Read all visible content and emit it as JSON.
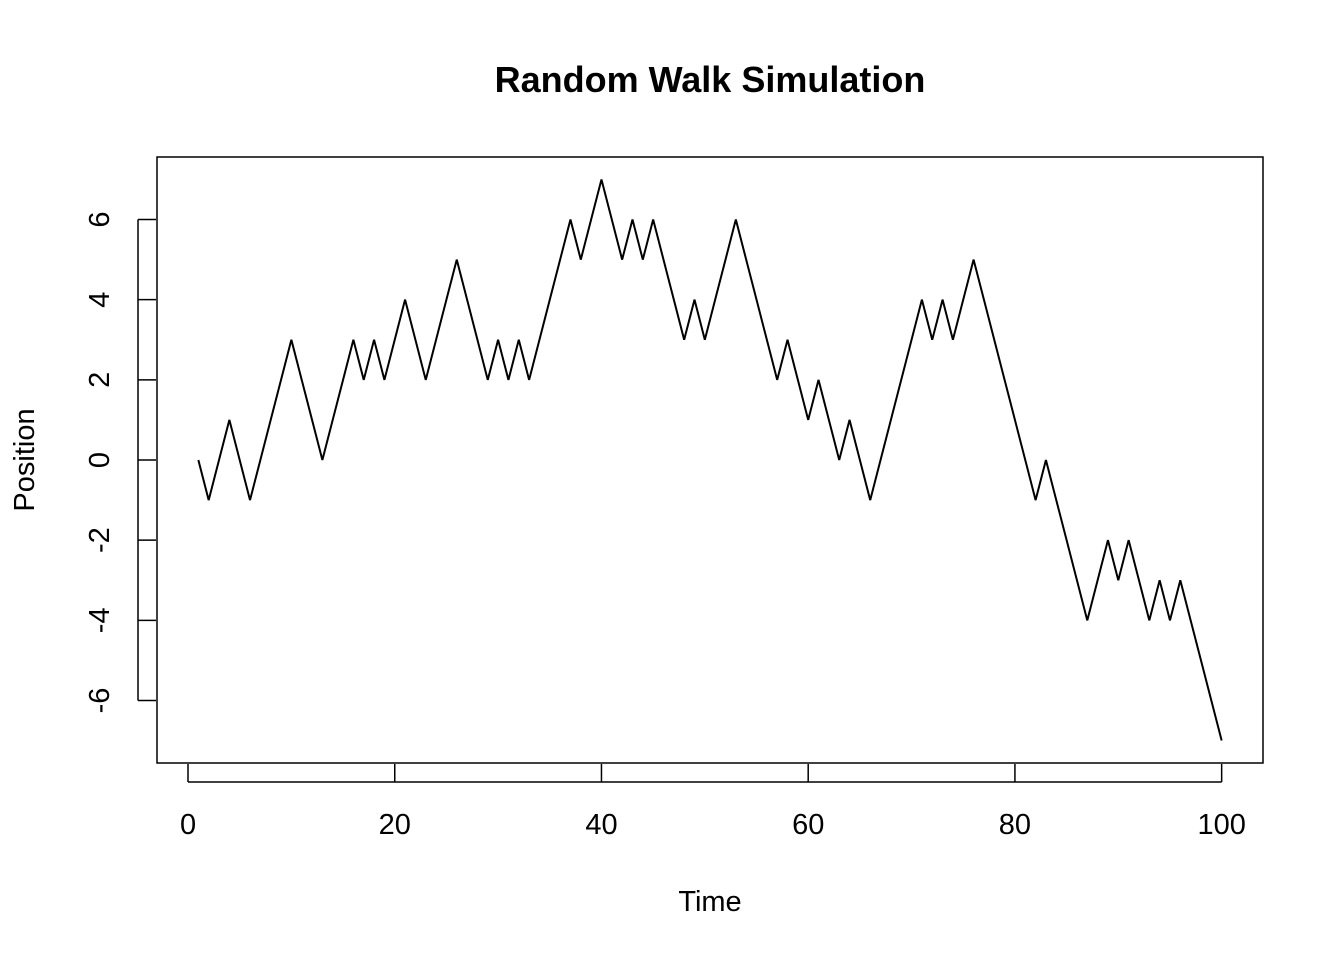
{
  "chart_data": {
    "type": "line",
    "title": "Random Walk Simulation",
    "xlabel": "Time",
    "ylabel": "Position",
    "xlim": [
      -3.0,
      104.0
    ],
    "ylim": [
      -7.56,
      7.56
    ],
    "xticks": [
      0,
      20,
      40,
      60,
      80,
      100
    ],
    "xtick_labels": [
      "0",
      "20",
      "40",
      "60",
      "80",
      "100"
    ],
    "yticks": [
      -6,
      -4,
      -2,
      0,
      2,
      4,
      6
    ],
    "ytick_labels": [
      "-6",
      "-4",
      "-2",
      "0",
      "2",
      "4",
      "6"
    ],
    "grid": false,
    "legend": "none",
    "colors": {
      "line": "#000000",
      "frame": "#000000",
      "background": "#ffffff"
    },
    "series": [
      {
        "x": [
          1,
          2,
          3,
          4,
          5,
          6,
          7,
          8,
          9,
          10,
          11,
          12,
          13,
          14,
          15,
          16,
          17,
          18,
          19,
          20,
          21,
          22,
          23,
          24,
          25,
          26,
          27,
          28,
          29,
          30,
          31,
          32,
          33,
          34,
          35,
          36,
          37,
          38,
          39,
          40,
          41,
          42,
          43,
          44,
          45,
          46,
          47,
          48,
          49,
          50,
          51,
          52,
          53,
          54,
          55,
          56,
          57,
          58,
          59,
          60,
          61,
          62,
          63,
          64,
          65,
          66,
          67,
          68,
          69,
          70,
          71,
          72,
          73,
          74,
          75,
          76,
          77,
          78,
          79,
          80,
          81,
          82,
          83,
          84,
          85,
          86,
          87,
          88,
          89,
          90,
          91,
          92,
          93,
          94,
          95,
          96,
          97,
          98,
          99,
          100
        ],
        "values": [
          0,
          -1,
          0,
          1,
          0,
          -1,
          0,
          1,
          2,
          3,
          2,
          1,
          0,
          1,
          2,
          3,
          2,
          3,
          2,
          3,
          4,
          3,
          2,
          3,
          4,
          5,
          4,
          3,
          2,
          3,
          2,
          3,
          2,
          3,
          4,
          5,
          6,
          5,
          6,
          7,
          6,
          5,
          6,
          5,
          6,
          5,
          4,
          3,
          4,
          3,
          4,
          5,
          6,
          5,
          4,
          3,
          2,
          3,
          2,
          1,
          2,
          1,
          0,
          1,
          0,
          -1,
          0,
          1,
          2,
          3,
          4,
          3,
          4,
          3,
          4,
          5,
          4,
          3,
          2,
          1,
          0,
          -1,
          0,
          -1,
          -2,
          -3,
          -4,
          -3,
          -2,
          -3,
          -2,
          -3,
          -4,
          -3,
          -4,
          -3,
          -4,
          -5,
          -6,
          -7
        ]
      }
    ]
  }
}
